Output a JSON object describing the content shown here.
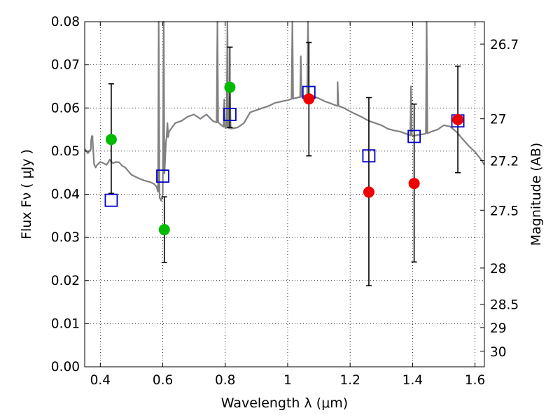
{
  "chart_data": {
    "type": "scatter",
    "xlabel": "Wavelength  λ (μm)",
    "ylabel": "Flux  Fν ( μJy )",
    "y2label": "Magnitude (AB)",
    "xlim": [
      0.35,
      1.63
    ],
    "ylim": [
      0.0,
      0.08
    ],
    "grid": "dotted",
    "x_ticks": [
      0.4,
      0.6,
      0.8,
      1.0,
      1.2,
      1.4,
      1.6
    ],
    "x_tick_labels": [
      "0.4",
      "0.6",
      "0.8",
      "1",
      "1.2",
      "1.4",
      "1.6"
    ],
    "y_ticks": [
      0.0,
      0.01,
      0.02,
      0.03,
      0.04,
      0.05,
      0.06,
      0.07,
      0.08
    ],
    "y_tick_labels": [
      "0.00",
      "0.01",
      "0.02",
      "0.03",
      "0.04",
      "0.05",
      "0.06",
      "0.07",
      "0.08"
    ],
    "y2_ticks": [
      {
        "label": "26.7",
        "flux": 0.0748
      },
      {
        "label": "27",
        "flux": 0.0575
      },
      {
        "label": "27.2",
        "flux": 0.0478
      },
      {
        "label": "27.5",
        "flux": 0.0363
      },
      {
        "label": "28",
        "flux": 0.0229
      },
      {
        "label": "28.5",
        "flux": 0.0145
      },
      {
        "label": "29",
        "flux": 0.0091
      },
      {
        "label": "30",
        "flux": 0.0036
      }
    ],
    "colors": {
      "spectrum": "#808080",
      "model": "#0000cc",
      "green": "#00bb00",
      "red": "#ee0000",
      "errorbar": "#000000"
    },
    "series": [
      {
        "kind": "spectrum",
        "x": [
          0.35,
          0.36,
          0.37,
          0.375,
          0.38,
          0.385,
          0.39,
          0.4,
          0.41,
          0.42,
          0.43,
          0.44,
          0.45,
          0.46,
          0.47,
          0.48,
          0.49,
          0.5,
          0.52,
          0.54,
          0.56,
          0.57,
          0.58,
          0.585,
          0.59,
          0.595,
          0.6,
          0.605,
          0.61,
          0.62,
          0.64,
          0.66,
          0.68,
          0.7,
          0.72,
          0.74,
          0.76,
          0.78,
          0.8,
          0.82,
          0.84,
          0.86,
          0.88,
          0.9,
          0.92,
          0.94,
          0.96,
          0.98,
          1.0,
          1.02,
          1.04,
          1.06,
          1.08,
          1.1,
          1.12,
          1.14,
          1.16,
          1.18,
          1.2,
          1.22,
          1.24,
          1.26,
          1.28,
          1.3,
          1.32,
          1.34,
          1.36,
          1.38,
          1.4,
          1.42,
          1.44,
          1.46,
          1.48,
          1.5,
          1.52,
          1.54,
          1.56,
          1.58,
          1.6,
          1.62,
          1.63
        ],
        "y": [
          0.0505,
          0.0495,
          0.0505,
          0.0535,
          0.047,
          0.0462,
          0.0468,
          0.0475,
          0.0472,
          0.0468,
          0.048,
          0.0472,
          0.0475,
          0.0474,
          0.0466,
          0.0462,
          0.0453,
          0.0445,
          0.0438,
          0.0432,
          0.0428,
          0.0425,
          0.0418,
          0.0415,
          0.0392,
          0.0385,
          0.04,
          0.048,
          0.052,
          0.0545,
          0.0565,
          0.057,
          0.058,
          0.0585,
          0.0575,
          0.0585,
          0.057,
          0.0565,
          0.0555,
          0.0552,
          0.0555,
          0.0565,
          0.059,
          0.0595,
          0.06,
          0.0605,
          0.0612,
          0.0615,
          0.0618,
          0.0622,
          0.0625,
          0.063,
          0.0628,
          0.0622,
          0.0615,
          0.061,
          0.0605,
          0.06,
          0.0592,
          0.0585,
          0.0578,
          0.057,
          0.0565,
          0.056,
          0.0552,
          0.0548,
          0.0545,
          0.054,
          0.0535,
          0.0538,
          0.054,
          0.0545,
          0.055,
          0.056,
          0.0557,
          0.0545,
          0.0528,
          0.0512,
          0.0498,
          0.048,
          0.0468
        ]
      },
      {
        "kind": "model",
        "x": [
          0.435,
          0.6,
          0.815,
          1.068,
          1.26,
          1.405,
          1.545
        ],
        "y": [
          0.0386,
          0.0442,
          0.0585,
          0.0636,
          0.0489,
          0.0534,
          0.057
        ]
      },
      {
        "kind": "green",
        "x": [
          0.435,
          0.605,
          0.815
        ],
        "y": [
          0.0527,
          0.0318,
          0.0648
        ]
      },
      {
        "kind": "red",
        "x": [
          1.068,
          1.26,
          1.405,
          1.545
        ],
        "y": [
          0.0621,
          0.0405,
          0.0425,
          0.0573
        ]
      }
    ],
    "error_bars": [
      {
        "x": 0.435,
        "low": 0.0402,
        "high": 0.0656
      },
      {
        "x": 0.605,
        "low": 0.0242,
        "high": 0.0394
      },
      {
        "x": 0.815,
        "low": 0.0555,
        "high": 0.0741
      },
      {
        "x": 1.068,
        "low": 0.0489,
        "high": 0.0752
      },
      {
        "x": 1.26,
        "low": 0.0188,
        "high": 0.0624
      },
      {
        "x": 1.405,
        "low": 0.0243,
        "high": 0.0609
      },
      {
        "x": 1.545,
        "low": 0.045,
        "high": 0.0697
      }
    ],
    "emission_lines": [
      {
        "x": 0.373,
        "peak": 0.0535
      },
      {
        "x": 0.587,
        "peak": 0.08
      },
      {
        "x": 0.603,
        "peak": 0.08
      },
      {
        "x": 0.615,
        "peak": 0.0565
      },
      {
        "x": 0.775,
        "peak": 0.08
      },
      {
        "x": 0.797,
        "peak": 0.062
      },
      {
        "x": 0.807,
        "peak": 0.08
      },
      {
        "x": 0.815,
        "peak": 0.065
      },
      {
        "x": 1.015,
        "peak": 0.08
      },
      {
        "x": 1.042,
        "peak": 0.072
      },
      {
        "x": 1.065,
        "peak": 0.08
      },
      {
        "x": 1.16,
        "peak": 0.066
      },
      {
        "x": 1.395,
        "peak": 0.065
      },
      {
        "x": 1.445,
        "peak": 0.08
      }
    ]
  }
}
